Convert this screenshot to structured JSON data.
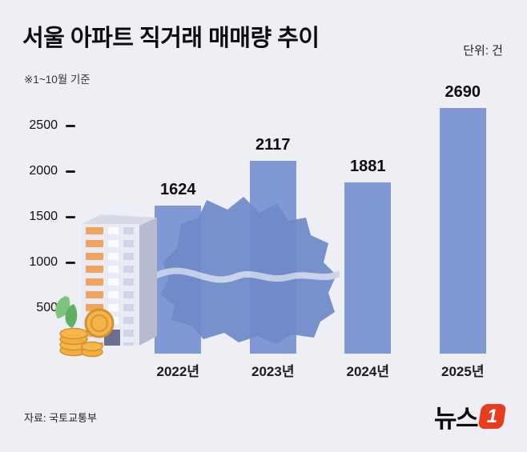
{
  "header": {
    "title": "서울 아파트 직거래 매매량 추이",
    "unit_label": "단위: 건",
    "note": "※1~10월 기준"
  },
  "chart_data": {
    "type": "bar",
    "title": "서울 아파트 직거래 매매량 추이",
    "unit": "건",
    "categories": [
      "2022년",
      "2023년",
      "2024년",
      "2025년"
    ],
    "values": [
      1624,
      2117,
      1881,
      2690
    ],
    "yticks": [
      500,
      1000,
      1500,
      2000,
      2500
    ],
    "ylim": [
      0,
      2800
    ],
    "period_note": "1~10월 기준",
    "legend": "none",
    "grid": "off"
  },
  "footer": {
    "source": "자료: 국토교통부"
  },
  "logo": {
    "text": "뉴스",
    "number": "1"
  },
  "icons": {
    "building": "apartment-building-illustration",
    "map": "seoul-map-illustration",
    "coins": "coin-stack-illustration"
  },
  "colors": {
    "background": "#edeff4",
    "bar": "#8099d4",
    "map": "#6e8aca",
    "river": "#ccd5ea",
    "window_orange": "#f0a35a",
    "coin_gold": "#f2ae3f",
    "logo_red": "#e73c1e",
    "text": "#111111"
  }
}
